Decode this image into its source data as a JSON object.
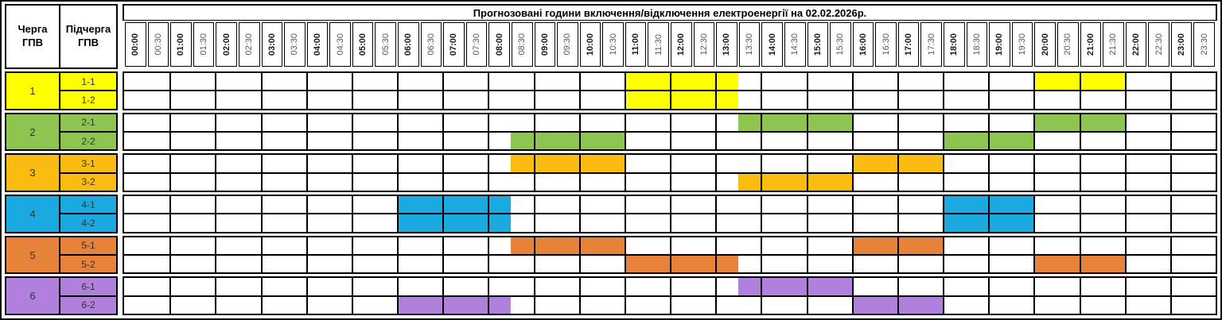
{
  "chart_data": {
    "type": "heatmap",
    "title": "Прогнозовані години включення/відключення електроенергії на 02.02.2026р.",
    "xlabel": "",
    "ylabel": "",
    "x_labels": [
      "00:00",
      "00:30",
      "01:00",
      "01:30",
      "02:00",
      "02:30",
      "03:00",
      "03:30",
      "04:00",
      "04:30",
      "05:00",
      "05:30",
      "06:00",
      "06:30",
      "07:00",
      "07:30",
      "08:00",
      "08:30",
      "09:00",
      "09:30",
      "10:00",
      "10:30",
      "11:00",
      "11:30",
      "12:00",
      "12:30",
      "13:00",
      "13:30",
      "14:00",
      "14:30",
      "15:00",
      "15:30",
      "16:00",
      "16:30",
      "17:00",
      "17:30",
      "18:00",
      "18:30",
      "19:00",
      "19:30",
      "20:00",
      "20:30",
      "21:00",
      "21:30",
      "22:00",
      "22:30",
      "23:00",
      "23:30"
    ],
    "queues": [
      {
        "number": "1",
        "color": "#FFFF00",
        "sub": [
          {
            "label": "1-1",
            "outages": [
              [
                "11:00",
                "13:30"
              ],
              [
                "20:00",
                "22:00"
              ]
            ]
          },
          {
            "label": "1-2",
            "outages": [
              [
                "11:00",
                "13:30"
              ]
            ]
          }
        ]
      },
      {
        "number": "2",
        "color": "#8DC550",
        "sub": [
          {
            "label": "2-1",
            "outages": [
              [
                "13:30",
                "16:00"
              ],
              [
                "20:00",
                "22:00"
              ]
            ]
          },
          {
            "label": "2-2",
            "outages": [
              [
                "08:30",
                "11:00"
              ],
              [
                "18:00",
                "20:00"
              ]
            ]
          }
        ]
      },
      {
        "number": "3",
        "color": "#FBBC11",
        "sub": [
          {
            "label": "3-1",
            "outages": [
              [
                "08:30",
                "11:00"
              ],
              [
                "16:00",
                "18:00"
              ]
            ]
          },
          {
            "label": "3-2",
            "outages": [
              [
                "13:30",
                "16:00"
              ]
            ]
          }
        ]
      },
      {
        "number": "4",
        "color": "#1BA9E1",
        "sub": [
          {
            "label": "4-1",
            "outages": [
              [
                "06:00",
                "08:30"
              ],
              [
                "18:00",
                "20:00"
              ]
            ]
          },
          {
            "label": "4-2",
            "outages": [
              [
                "06:00",
                "08:30"
              ],
              [
                "18:00",
                "20:00"
              ]
            ]
          }
        ]
      },
      {
        "number": "5",
        "color": "#E8823A",
        "sub": [
          {
            "label": "5-1",
            "outages": [
              [
                "08:30",
                "11:00"
              ],
              [
                "16:00",
                "18:00"
              ]
            ]
          },
          {
            "label": "5-2",
            "outages": [
              [
                "11:00",
                "13:30"
              ],
              [
                "20:00",
                "22:00"
              ]
            ]
          }
        ]
      },
      {
        "number": "6",
        "color": "#B081DC",
        "sub": [
          {
            "label": "6-1",
            "outages": [
              [
                "13:30",
                "16:00"
              ]
            ]
          },
          {
            "label": "6-2",
            "outages": [
              [
                "06:00",
                "08:30"
              ],
              [
                "16:00",
                "18:00"
              ]
            ]
          }
        ]
      }
    ]
  },
  "corner": {
    "queue_header": "Черга ГПВ",
    "subqueue_header": "Підчерга ГПВ"
  }
}
